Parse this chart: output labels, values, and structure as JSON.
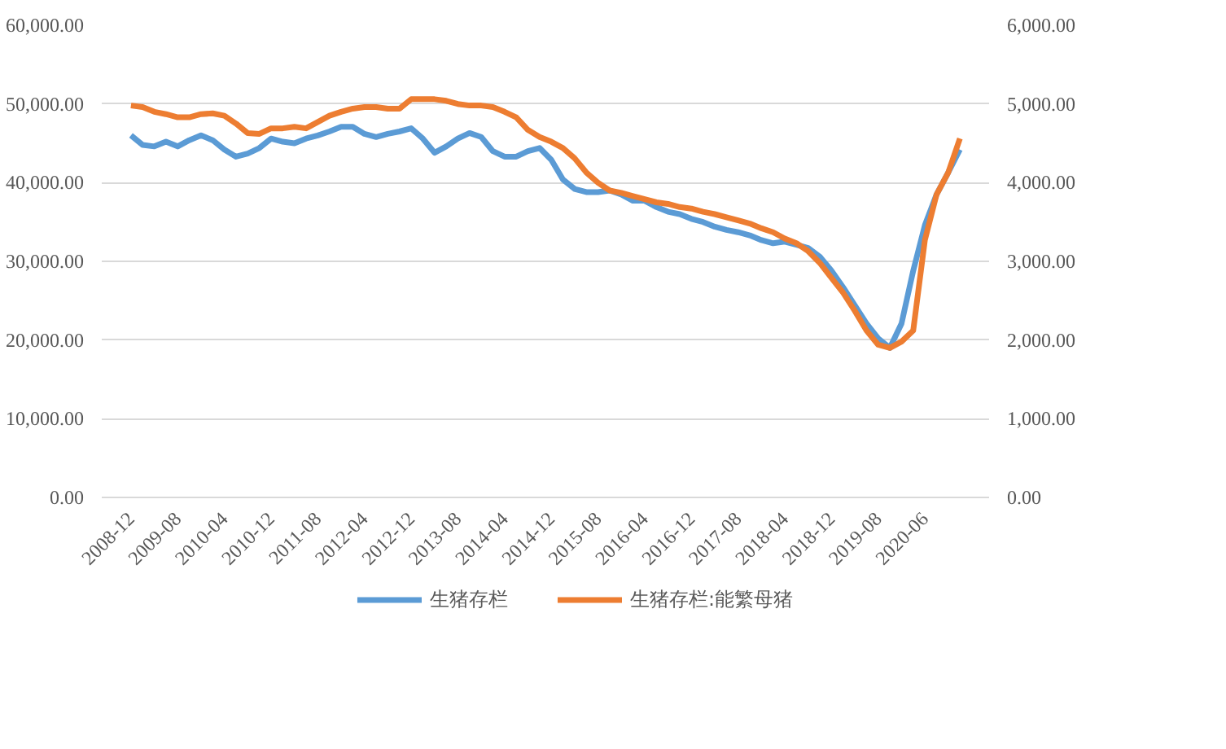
{
  "chart_data": {
    "type": "line",
    "categories": [
      "2008-12",
      null,
      null,
      null,
      "2009-08",
      null,
      null,
      null,
      "2010-04",
      null,
      null,
      null,
      "2010-12",
      null,
      null,
      null,
      "2011-08",
      null,
      null,
      null,
      "2012-04",
      null,
      null,
      null,
      "2012-12",
      null,
      null,
      null,
      "2013-08",
      null,
      null,
      null,
      "2014-04",
      null,
      null,
      null,
      "2014-12",
      null,
      null,
      null,
      "2015-08",
      null,
      null,
      null,
      "2016-04",
      null,
      null,
      null,
      "2016-12",
      null,
      null,
      null,
      "2017-08",
      null,
      null,
      null,
      "2018-04",
      null,
      null,
      null,
      "2018-12",
      null,
      null,
      null,
      "2019-08",
      null,
      null,
      null,
      "2020-06",
      null,
      null,
      null
    ],
    "series": [
      {
        "name": "生猪存栏",
        "color": "#5b9bd5",
        "values": [
          46000,
          44800,
          44600,
          45200,
          44600,
          45400,
          46000,
          45400,
          44200,
          43300,
          43700,
          44400,
          45600,
          45200,
          45000,
          45600,
          46000,
          46500,
          47100,
          47100,
          46200,
          45800,
          46200,
          46500,
          46900,
          45600,
          43800,
          44600,
          45600,
          46300,
          45800,
          44000,
          43300,
          43300,
          44000,
          44400,
          42900,
          40400,
          39200,
          38800,
          38800,
          39000,
          38500,
          37700,
          37700,
          36900,
          36300,
          36000,
          35400,
          35000,
          34400,
          34000,
          33700,
          33300,
          32700,
          32300,
          32500,
          32100,
          31700,
          30600,
          28800,
          26700,
          24400,
          22100,
          20200,
          19000,
          22100,
          28800,
          34600,
          38500,
          41300,
          44200
        ]
      },
      {
        "name": "生猪存栏:能繁母猪",
        "color": "#ed7d31",
        "axis": "y2",
        "values": [
          4980,
          4960,
          4900,
          4870,
          4830,
          4830,
          4870,
          4880,
          4850,
          4750,
          4630,
          4620,
          4690,
          4690,
          4710,
          4690,
          4770,
          4850,
          4900,
          4940,
          4960,
          4960,
          4940,
          4940,
          5060,
          5060,
          5060,
          5040,
          5000,
          4980,
          4980,
          4960,
          4900,
          4830,
          4670,
          4580,
          4520,
          4440,
          4310,
          4130,
          4000,
          3900,
          3870,
          3830,
          3790,
          3750,
          3730,
          3690,
          3670,
          3630,
          3600,
          3560,
          3520,
          3480,
          3420,
          3370,
          3290,
          3230,
          3130,
          2980,
          2790,
          2600,
          2370,
          2120,
          1940,
          1900,
          1980,
          2120,
          3270,
          3850,
          4130,
          4560
        ]
      }
    ],
    "ylim": [
      0,
      60000
    ],
    "yticks": [
      {
        "value": 0,
        "label": "0.00"
      },
      {
        "value": 10000,
        "label": "10,000.00"
      },
      {
        "value": 20000,
        "label": "20,000.00"
      },
      {
        "value": 30000,
        "label": "30,000.00"
      },
      {
        "value": 40000,
        "label": "40,000.00"
      },
      {
        "value": 50000,
        "label": "50,000.00"
      },
      {
        "value": 60000,
        "label": "60,000.00"
      }
    ],
    "y2lim": [
      0,
      6000
    ],
    "y2ticks": [
      {
        "value": 0,
        "label": "0.00"
      },
      {
        "value": 1000,
        "label": "1,000.00"
      },
      {
        "value": 2000,
        "label": "2,000.00"
      },
      {
        "value": 3000,
        "label": "3,000.00"
      },
      {
        "value": 4000,
        "label": "4,000.00"
      },
      {
        "value": 5000,
        "label": "5,000.00"
      },
      {
        "value": 6000,
        "label": "6,000.00"
      }
    ],
    "grid": "y",
    "legend": "bottom",
    "marker": "none",
    "line_style": "solid"
  }
}
